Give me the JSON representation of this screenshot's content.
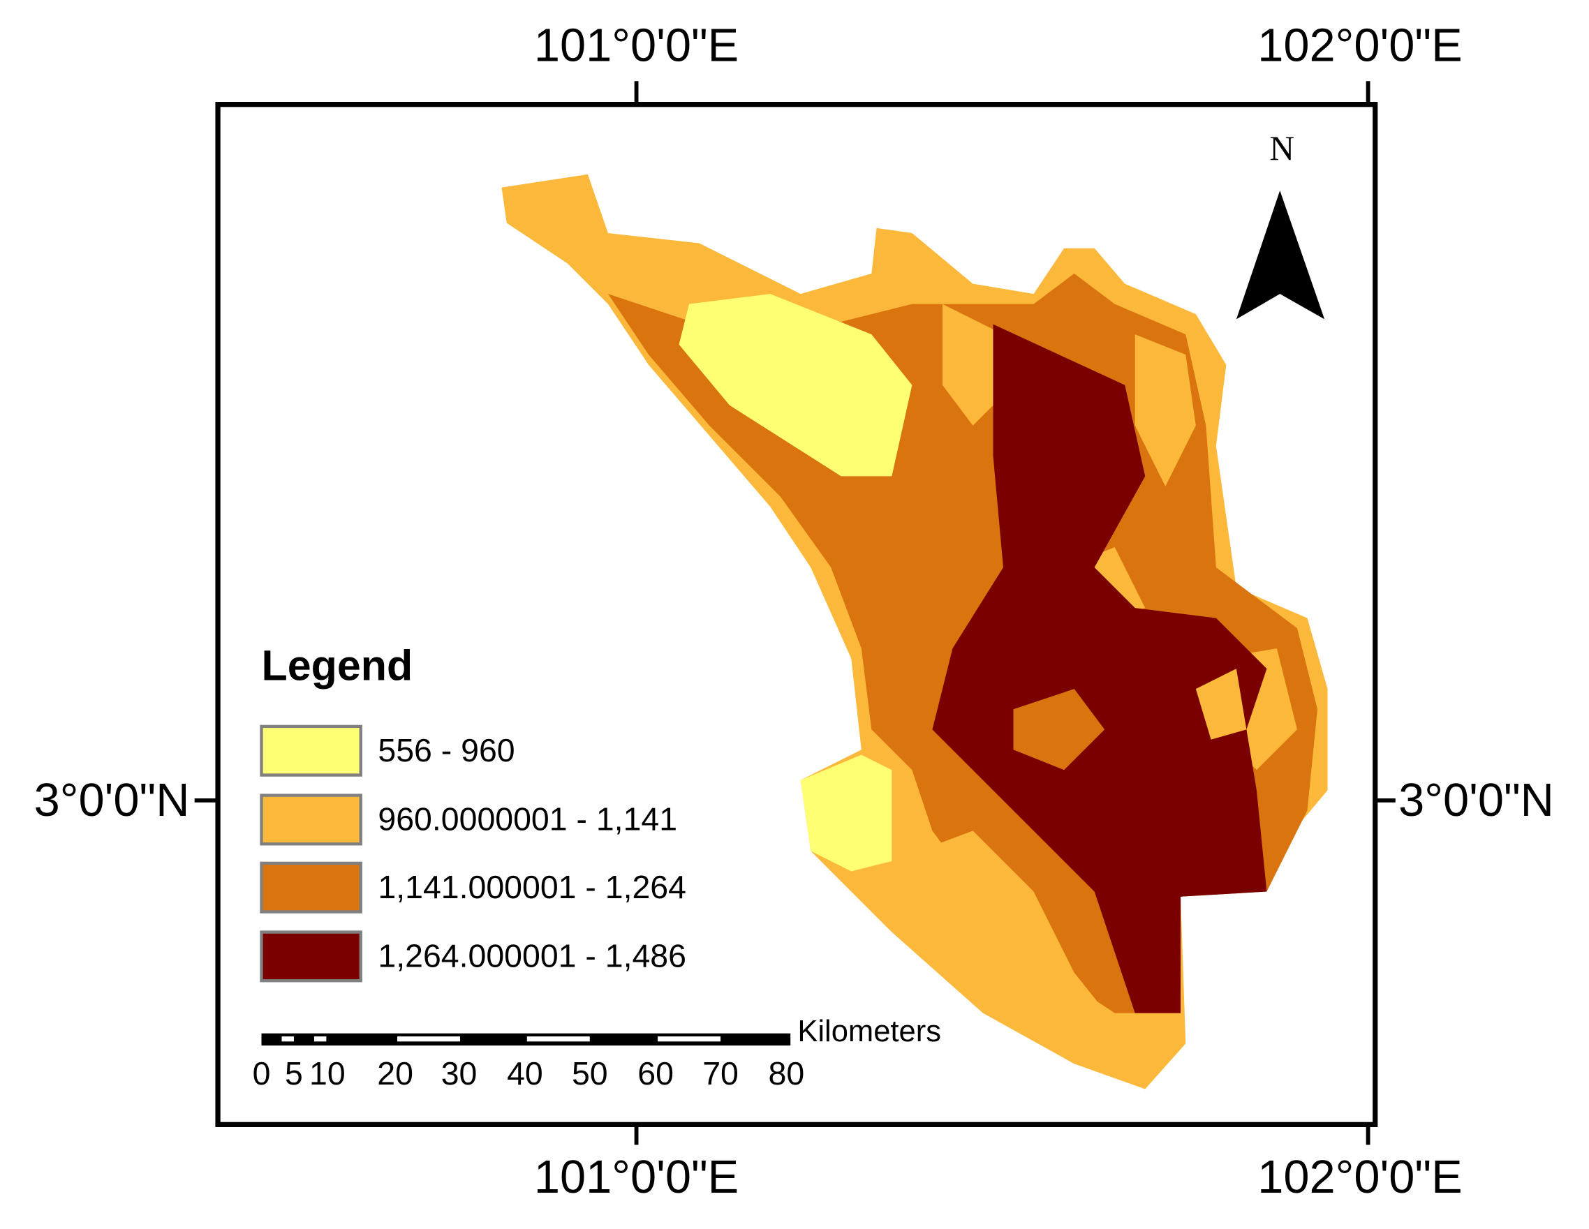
{
  "graticule": {
    "top": [
      "101°0'0\"E",
      "102°0'0\"E"
    ],
    "bottom": [
      "101°0'0\"E",
      "102°0'0\"E"
    ],
    "left": [
      "3°0'0\"N"
    ],
    "right": [
      "3°0'0\"N"
    ]
  },
  "north_arrow": {
    "label": "N"
  },
  "legend": {
    "title": "Legend",
    "items": [
      {
        "label": "556 - 960",
        "color": "#ffff73"
      },
      {
        "label": "960.0000001 - 1,141",
        "color": "#fcb83a"
      },
      {
        "label": "1,141.000001 - 1,264",
        "color": "#d9740e"
      },
      {
        "label": "1,264.000001 - 1,486",
        "color": "#7a0000"
      }
    ]
  },
  "scalebar": {
    "unit": "Kilometers",
    "labels": [
      "0",
      "5",
      "10",
      "20",
      "30",
      "40",
      "50",
      "60",
      "70",
      "80"
    ]
  }
}
